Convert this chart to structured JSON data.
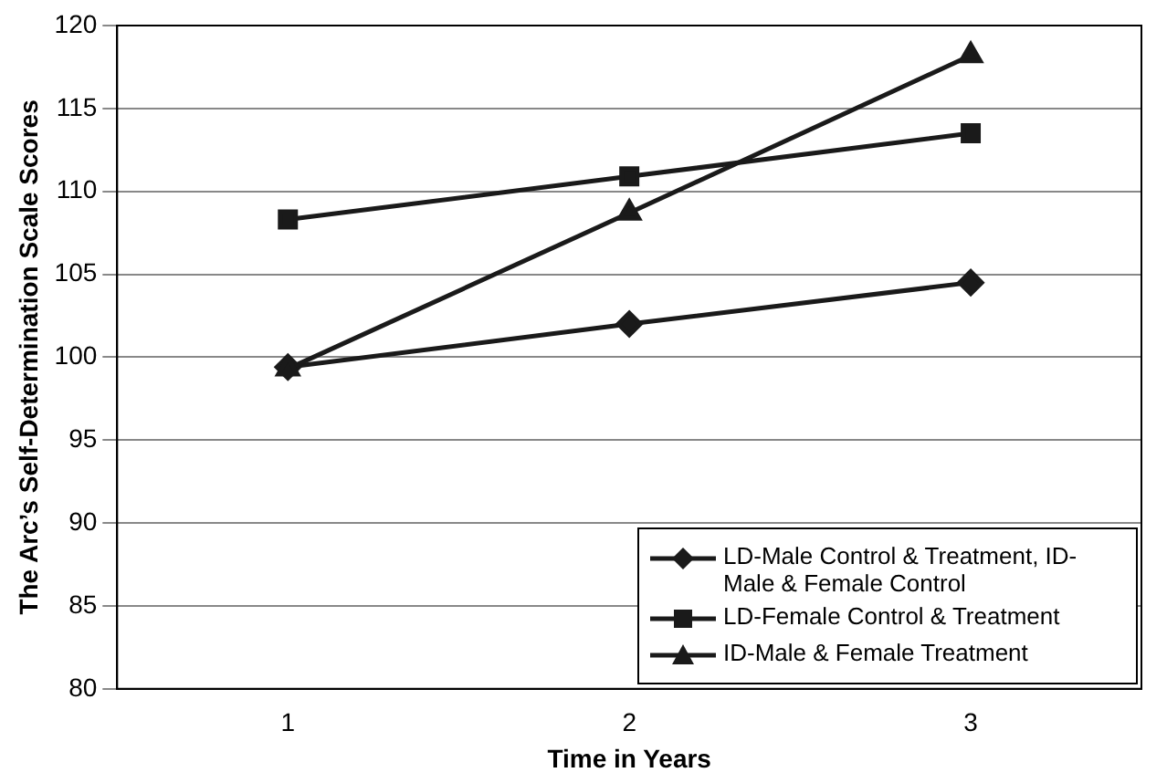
{
  "chart_data": {
    "type": "line",
    "xlabel": "Time in Years",
    "ylabel": "The Arc’s Self-Determination Scale Scores",
    "categories": [
      "1",
      "2",
      "3"
    ],
    "series": [
      {
        "name": "LD-Male Control & Treatment, ID-Male & Female Control",
        "color": "#1a1a1a",
        "marker": "diamond",
        "values": [
          99.4,
          102,
          104.5
        ]
      },
      {
        "name": "LD-Female Control & Treatment",
        "color": "#1a1a1a",
        "marker": "square",
        "values": [
          108.3,
          110.9,
          113.5
        ]
      },
      {
        "name": "ID-Male & Female Treatment",
        "color": "#1a1a1a",
        "marker": "triangle",
        "values": [
          99.3,
          108.7,
          118.2
        ]
      }
    ],
    "ylim": [
      80,
      120
    ],
    "yticks": [
      80,
      85,
      90,
      95,
      100,
      105,
      110,
      115,
      120
    ],
    "grid": "y",
    "legend": "bottom right"
  }
}
